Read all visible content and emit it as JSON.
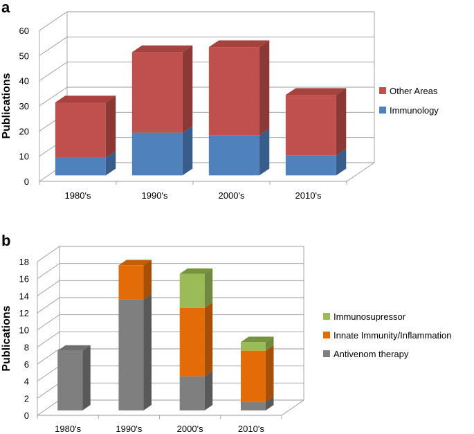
{
  "chart_data": [
    {
      "panel_label": "a",
      "type": "bar",
      "stacked": true,
      "three_d": true,
      "categories": [
        "1980's",
        "1990's",
        "2000's",
        "2010's"
      ],
      "series": [
        {
          "name": "Immunology",
          "values": [
            7,
            17,
            16,
            8
          ]
        },
        {
          "name": "Other Areas",
          "values": [
            22,
            32,
            35,
            24
          ]
        }
      ],
      "ylabel": "Publications",
      "ylim": [
        0,
        60
      ],
      "yticks": [
        0,
        10,
        20,
        30,
        40,
        50,
        60
      ],
      "grid": true,
      "legend": "right",
      "legend_order": [
        "Other Areas",
        "Immunology"
      ],
      "colors": {
        "Immunology": {
          "front": "#4f81bd",
          "side": "#385d8a",
          "top": "#6a95c9"
        },
        "Other Areas": {
          "front": "#c0504d",
          "side": "#8c3836",
          "top": "#a7433f"
        }
      }
    },
    {
      "panel_label": "b",
      "type": "bar",
      "stacked": true,
      "three_d": true,
      "categories": [
        "1980's",
        "1990's",
        "2000's",
        "2010's"
      ],
      "series": [
        {
          "name": "Antivenom therapy",
          "values": [
            7,
            13,
            4,
            1
          ]
        },
        {
          "name": "Innate Immunity/Inflammation",
          "values": [
            0,
            4,
            8,
            6
          ]
        },
        {
          "name": "Immunosupressor",
          "values": [
            0,
            0,
            4,
            1
          ]
        }
      ],
      "ylabel": "Publications",
      "ylim": [
        0,
        18
      ],
      "yticks": [
        0,
        2,
        4,
        6,
        8,
        10,
        12,
        14,
        16,
        18
      ],
      "grid": true,
      "legend": "right",
      "legend_order": [
        "Immunosupressor",
        "Innate Immunity/Inflammation",
        "Antivenom therapy"
      ],
      "colors": {
        "Antivenom therapy": {
          "front": "#7f7f7f",
          "side": "#595959",
          "top": "#6e6e6e"
        },
        "Innate Immunity/Inflammation": {
          "front": "#e36c09",
          "side": "#a64f06",
          "top": "#c45d07"
        },
        "Immunosupressor": {
          "front": "#9bbb59",
          "side": "#71893f",
          "top": "#77933c"
        }
      }
    }
  ]
}
